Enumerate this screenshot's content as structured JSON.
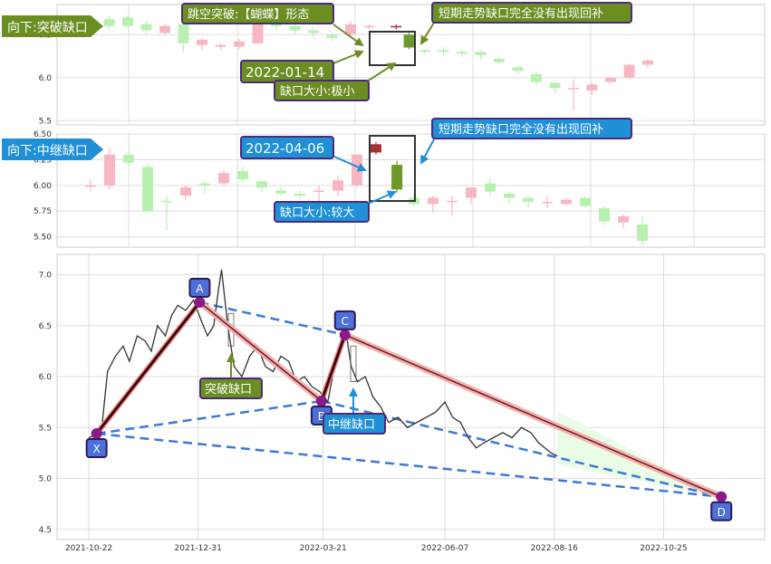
{
  "colors": {
    "up": "#f7b6c2",
    "down": "#b8f0b0",
    "gap_up": "#a83232",
    "gap_down": "#6b9a2a",
    "grid": "#dddddd",
    "annot_green_bg": "#6b8e23",
    "annot_blue_bg": "#1f8fd6",
    "annot_border": "#4b2a7a",
    "dashed": "#3d78d8",
    "label_box": "#4d6fd8",
    "price_line": "#333333",
    "channel_fill": "#e7fde3"
  },
  "chart_data": [
    {
      "type": "candlestick",
      "panel": "top",
      "ylim": [
        5.45,
        6.85
      ],
      "yticks": [
        "5.5",
        "6.0",
        "6.5"
      ],
      "tag": "向下:突破缺口",
      "annotations": {
        "pattern": "跳空突破:【蝴蝶】形态",
        "date": "2022-01-14",
        "gap_size": "缺口大小:极小",
        "note": "短期走势缺口完全没有出现回补"
      },
      "candles": [
        [
          6.66,
          6.62,
          6.7,
          6.58
        ],
        [
          6.68,
          6.6,
          6.72,
          6.56
        ],
        [
          6.7,
          6.6,
          6.72,
          6.58
        ],
        [
          6.62,
          6.55,
          6.66,
          6.52
        ],
        [
          6.52,
          6.6,
          6.63,
          6.5
        ],
        [
          6.62,
          6.4,
          6.65,
          6.3
        ],
        [
          6.38,
          6.44,
          6.47,
          6.32
        ],
        [
          6.36,
          6.38,
          6.4,
          6.32
        ],
        [
          6.36,
          6.42,
          6.45,
          6.33
        ],
        [
          6.4,
          6.7,
          6.8,
          6.38
        ],
        [
          6.7,
          6.6,
          6.75,
          6.55
        ],
        [
          6.6,
          6.55,
          6.62,
          6.5
        ],
        [
          6.55,
          6.52,
          6.58,
          6.46
        ],
        [
          6.5,
          6.46,
          6.52,
          6.42
        ],
        [
          6.5,
          6.62,
          6.66,
          6.48
        ],
        [
          6.6,
          6.6,
          6.62,
          6.56
        ],
        [
          6.58,
          6.62,
          6.65,
          6.55
        ],
        [
          6.5,
          6.35,
          6.5,
          6.35
        ],
        [
          6.32,
          6.3,
          6.33,
          6.28
        ],
        [
          6.32,
          6.3,
          6.36,
          6.26
        ],
        [
          6.3,
          6.28,
          6.32,
          6.24
        ],
        [
          6.3,
          6.26,
          6.32,
          6.22
        ],
        [
          6.22,
          6.18,
          6.24,
          6.16
        ],
        [
          6.12,
          6.08,
          6.14,
          6.04
        ],
        [
          6.04,
          5.95,
          6.06,
          5.92
        ],
        [
          5.94,
          5.88,
          5.96,
          5.82
        ],
        [
          5.88,
          5.88,
          5.98,
          5.62
        ],
        [
          5.85,
          5.92,
          5.94,
          5.8
        ],
        [
          5.95,
          6.0,
          6.02,
          5.93
        ],
        [
          6.0,
          6.15,
          6.16,
          5.98
        ],
        [
          6.15,
          6.2,
          6.22,
          6.12
        ]
      ],
      "gap_candles": [
        {
          "slot": 16.45,
          "open": 6.6,
          "close": 6.6,
          "high": 6.62,
          "low": 6.56,
          "dir": "up"
        },
        {
          "slot": 17.15,
          "open": 6.5,
          "close": 6.35,
          "high": 6.52,
          "low": 6.33,
          "dir": "down"
        }
      ]
    },
    {
      "type": "candlestick",
      "panel": "middle",
      "ylim": [
        5.4,
        6.5
      ],
      "yticks": [
        "5.50",
        "5.75",
        "6.00",
        "6.25",
        "6.50"
      ],
      "tag": "向下:中继缺口",
      "annotations": {
        "date": "2022-04-06",
        "gap_size": "缺口大小:较大",
        "note": "短期走势缺口完全没有出现回补"
      },
      "candles": [
        [
          6.0,
          6.0,
          6.05,
          5.94
        ],
        [
          6.0,
          6.3,
          6.36,
          5.96
        ],
        [
          6.3,
          6.22,
          6.38,
          6.18
        ],
        [
          6.18,
          5.75,
          6.22,
          5.74
        ],
        [
          5.85,
          5.84,
          5.9,
          5.56
        ],
        [
          5.9,
          5.98,
          6.0,
          5.86
        ],
        [
          6.02,
          6.0,
          6.04,
          5.92
        ],
        [
          6.02,
          6.12,
          6.14,
          6.0
        ],
        [
          6.14,
          6.06,
          6.18,
          6.02
        ],
        [
          6.04,
          5.98,
          6.06,
          5.94
        ],
        [
          5.95,
          5.92,
          5.98,
          5.9
        ],
        [
          5.92,
          5.9,
          5.95,
          5.86
        ],
        [
          5.95,
          5.95,
          6.0,
          5.82
        ],
        [
          5.95,
          6.05,
          6.1,
          5.9
        ],
        [
          6.0,
          6.3,
          6.3,
          5.98
        ],
        [
          6.25,
          6.4,
          6.4,
          6.22
        ],
        [
          6.2,
          5.95,
          6.25,
          5.92
        ],
        [
          5.88,
          5.82,
          5.92,
          5.8
        ],
        [
          5.82,
          5.88,
          5.9,
          5.74
        ],
        [
          5.85,
          5.85,
          5.9,
          5.7
        ],
        [
          5.88,
          5.98,
          5.98,
          5.82
        ],
        [
          6.02,
          5.94,
          6.06,
          5.9
        ],
        [
          5.92,
          5.88,
          5.94,
          5.82
        ],
        [
          5.88,
          5.84,
          5.9,
          5.78
        ],
        [
          5.84,
          5.84,
          5.9,
          5.78
        ],
        [
          5.82,
          5.86,
          5.88,
          5.8
        ],
        [
          5.88,
          5.8,
          5.9,
          5.78
        ],
        [
          5.78,
          5.65,
          5.8,
          5.62
        ],
        [
          5.64,
          5.7,
          5.72,
          5.58
        ],
        [
          5.62,
          5.46,
          5.7,
          5.42
        ]
      ],
      "gap_candles": [
        {
          "slot": 15.0,
          "open": 6.32,
          "close": 6.4,
          "high": 6.42,
          "low": 6.3,
          "dir": "up"
        },
        {
          "slot": 16.1,
          "open": 6.2,
          "close": 5.96,
          "high": 6.24,
          "low": 5.93,
          "dir": "down"
        }
      ]
    },
    {
      "type": "line",
      "panel": "bottom",
      "ylim": [
        4.4,
        7.2
      ],
      "yticks": [
        "4.5",
        "5.0",
        "5.5",
        "6.0",
        "6.5",
        "7.0"
      ],
      "xticks": [
        "2021-10-22",
        "2021-12-31",
        "2022-03-21",
        "2022-06-07",
        "2022-08-16",
        "2022-10-25"
      ],
      "x_start": "2021-10-22",
      "x_end": "2022-12-09",
      "price_series": {
        "x": [
          "2021-10-22",
          "2021-10-30",
          "2021-11-03",
          "2021-11-08",
          "2021-11-13",
          "2021-11-17",
          "2021-11-22",
          "2021-11-27",
          "2021-12-01",
          "2021-12-05",
          "2021-12-10",
          "2021-12-14",
          "2021-12-18",
          "2021-12-23",
          "2021-12-28",
          "2022-01-02",
          "2022-01-06",
          "2022-01-10",
          "2022-01-13",
          "2022-01-15",
          "2022-01-19",
          "2022-01-23",
          "2022-01-28",
          "2022-02-02",
          "2022-02-07",
          "2022-02-12",
          "2022-02-17",
          "2022-02-22",
          "2022-02-27",
          "2022-03-04",
          "2022-03-09",
          "2022-03-14",
          "2022-03-19",
          "2022-03-24",
          "2022-03-29",
          "2022-04-03",
          "2022-04-05",
          "2022-04-08",
          "2022-04-12",
          "2022-04-17",
          "2022-04-22",
          "2022-04-27",
          "2022-05-02",
          "2022-05-08",
          "2022-05-14",
          "2022-05-20",
          "2022-05-26",
          "2022-06-01",
          "2022-06-07",
          "2022-06-12",
          "2022-06-17",
          "2022-06-22",
          "2022-06-27",
          "2022-07-02",
          "2022-07-08",
          "2022-07-14",
          "2022-07-20",
          "2022-07-26",
          "2022-08-01",
          "2022-08-06",
          "2022-08-10",
          "2022-08-14",
          "2022-08-18"
        ],
        "y": [
          5.4,
          5.45,
          6.05,
          6.2,
          6.3,
          6.15,
          6.4,
          6.35,
          6.25,
          6.5,
          6.4,
          6.6,
          6.7,
          6.65,
          6.75,
          6.55,
          6.4,
          6.5,
          6.85,
          7.05,
          6.5,
          6.1,
          6.0,
          6.2,
          6.3,
          6.1,
          6.05,
          6.2,
          6.15,
          5.95,
          6.0,
          5.9,
          5.85,
          5.75,
          6.15,
          6.4,
          6.4,
          6.1,
          5.95,
          6.0,
          5.8,
          5.7,
          5.55,
          5.6,
          5.5,
          5.55,
          5.6,
          5.65,
          5.75,
          5.6,
          5.55,
          5.4,
          5.3,
          5.35,
          5.4,
          5.45,
          5.4,
          5.5,
          5.45,
          5.35,
          5.3,
          5.25,
          5.22
        ]
      },
      "points": [
        {
          "label": "X",
          "x": "2021-10-27",
          "y": 5.44
        },
        {
          "label": "A",
          "x": "2022-01-01",
          "y": 6.73
        },
        {
          "label": "B",
          "x": "2022-03-20",
          "y": 5.76
        },
        {
          "label": "C",
          "x": "2022-04-04",
          "y": 6.41
        },
        {
          "label": "D",
          "x": "2022-12-01",
          "y": 4.82
        }
      ],
      "gap_labels": {
        "breakaway": "突破缺口",
        "runaway": "中继缺口"
      }
    }
  ]
}
